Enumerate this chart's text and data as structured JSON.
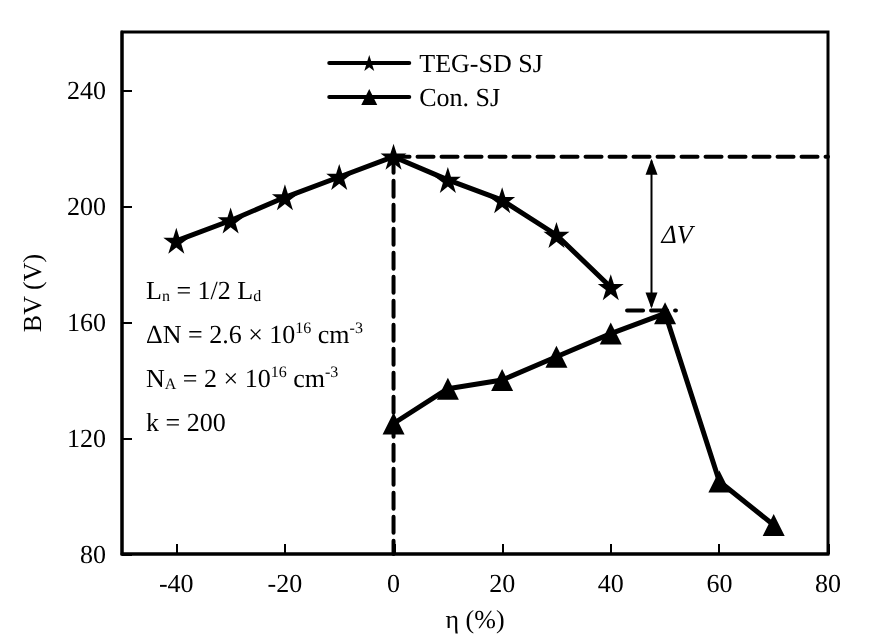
{
  "chart_data": {
    "type": "line",
    "xlabel": "η (%)",
    "ylabel": "BV (V)",
    "xlim": [
      -50,
      80
    ],
    "xticks": [
      -40,
      -20,
      0,
      20,
      40,
      60,
      80
    ],
    "ylim": [
      80,
      260
    ],
    "yticks": [
      80,
      120,
      160,
      200,
      240
    ],
    "grid": false,
    "legend": "top",
    "series": [
      {
        "name": "TEG-SD SJ",
        "color": "#000000",
        "marker": "star",
        "x": [
          -40,
          -30,
          -20,
          -10,
          0,
          10,
          20,
          30,
          40
        ],
        "values": [
          188,
          195,
          203,
          210,
          217,
          209,
          202,
          190,
          172
        ]
      },
      {
        "name": "Con. SJ",
        "color": "#000000",
        "marker": "triangle",
        "x": [
          0,
          10,
          20,
          30,
          40,
          50,
          60,
          70
        ],
        "values": [
          125,
          137,
          140,
          148,
          156,
          163,
          105,
          90
        ]
      },
      {
        "color": "#000000",
        "marker": "none",
        "line_style": "dashed",
        "x": [
          0,
          0
        ],
        "values": [
          217,
          80
        ]
      },
      {
        "color": "#000000",
        "marker": "none",
        "line_style": "dashed",
        "x": [
          0,
          80
        ],
        "values": [
          217,
          217
        ]
      },
      {
        "color": "#000000",
        "marker": "none",
        "line_style": "dashed",
        "x": [
          43,
          52
        ],
        "values": [
          164,
          164
        ]
      }
    ],
    "annotations": [
      "ΔV",
      "L$_{n}$ = 1/2 L$_{d}$",
      "ΔN = 2.6 × 10$^{16}$ cm$^{-3}$",
      "N$_{A}$ = 2 × 10$^{16}$ cm$^{-3}$",
      "k = 200"
    ]
  }
}
